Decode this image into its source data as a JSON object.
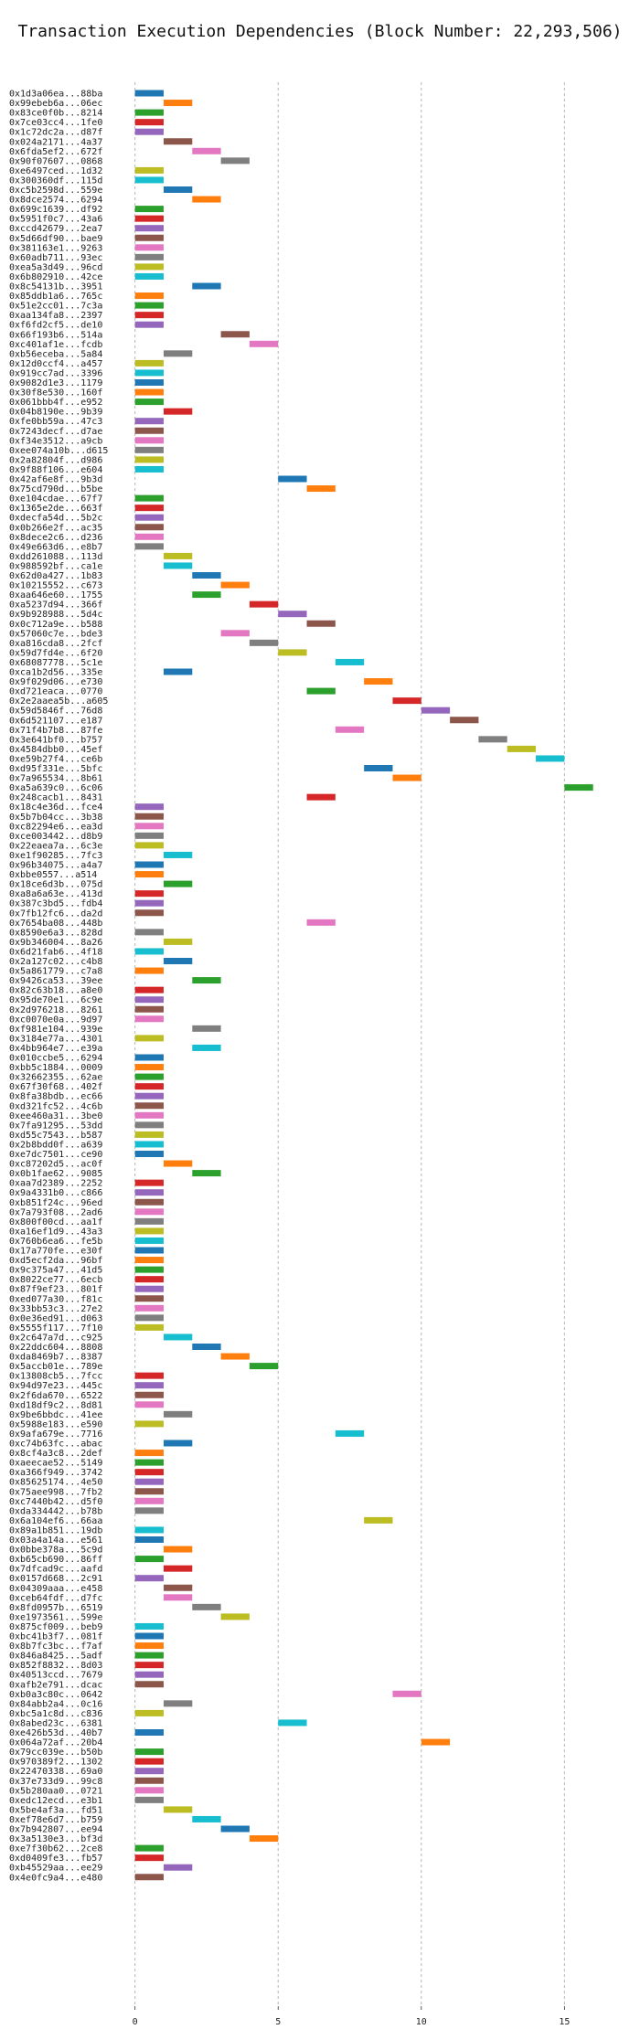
{
  "chart_data": {
    "type": "bar",
    "orientation": "horizontal-gantt",
    "title": "Transaction Execution Dependencies (Block Number: 22,293,506)",
    "xlabel": "",
    "ylabel": "",
    "xlim": [
      -0.5,
      17
    ],
    "xticks": [
      0,
      5,
      10,
      15
    ],
    "grid": true,
    "bar_width": 1,
    "colors": [
      "#1f77b4",
      "#ff7f0e",
      "#2ca02c",
      "#d62728",
      "#9467bd",
      "#8c564b",
      "#e377c2",
      "#7f7f7f",
      "#bcbd22",
      "#17becf"
    ],
    "rows": [
      {
        "tx": "0x1d3a06ea...88ba",
        "start": 0,
        "color": 0
      },
      {
        "tx": "0x99ebeb6a...06ec",
        "start": 1,
        "color": 1
      },
      {
        "tx": "0x83ce0f0b...8214",
        "start": 0,
        "color": 2
      },
      {
        "tx": "0x7ce03cc4...1fe0",
        "start": 0,
        "color": 3
      },
      {
        "tx": "0x1c72dc2a...d87f",
        "start": 0,
        "color": 4
      },
      {
        "tx": "0x024a2171...4a37",
        "start": 1,
        "color": 5
      },
      {
        "tx": "0x6fda5ef2...672f",
        "start": 2,
        "color": 6
      },
      {
        "tx": "0x90f07607...0868",
        "start": 3,
        "color": 7
      },
      {
        "tx": "0xe6497ced...1d32",
        "start": 0,
        "color": 8
      },
      {
        "tx": "0x300360df...115d",
        "start": 0,
        "color": 9
      },
      {
        "tx": "0xc5b2598d...559e",
        "start": 1,
        "color": 0
      },
      {
        "tx": "0x8dce2574...6294",
        "start": 2,
        "color": 1
      },
      {
        "tx": "0x699c1639...df92",
        "start": 0,
        "color": 2
      },
      {
        "tx": "0x5951f0c7...43a6",
        "start": 0,
        "color": 3
      },
      {
        "tx": "0xccd42679...2ea7",
        "start": 0,
        "color": 4
      },
      {
        "tx": "0x5d66df90...bae9",
        "start": 0,
        "color": 5
      },
      {
        "tx": "0x381163e1...9263",
        "start": 0,
        "color": 6
      },
      {
        "tx": "0x60adb711...93ec",
        "start": 0,
        "color": 7
      },
      {
        "tx": "0xea5a3d49...96cd",
        "start": 0,
        "color": 8
      },
      {
        "tx": "0x6b802910...42ce",
        "start": 0,
        "color": 9
      },
      {
        "tx": "0x8c54131b...3951",
        "start": 2,
        "color": 0
      },
      {
        "tx": "0x85ddb1a6...765c",
        "start": 0,
        "color": 1
      },
      {
        "tx": "0x51e2cc01...7c3a",
        "start": 0,
        "color": 2
      },
      {
        "tx": "0xaa134fa8...2397",
        "start": 0,
        "color": 3
      },
      {
        "tx": "0xf6fd2cf5...de10",
        "start": 0,
        "color": 4
      },
      {
        "tx": "0x66f193b6...514a",
        "start": 3,
        "color": 5
      },
      {
        "tx": "0xc401af1e...fcdb",
        "start": 4,
        "color": 6
      },
      {
        "tx": "0xb56eceba...5a84",
        "start": 1,
        "color": 7
      },
      {
        "tx": "0x12d0ccf4...a457",
        "start": 0,
        "color": 8
      },
      {
        "tx": "0x919cc7ad...3396",
        "start": 0,
        "color": 9
      },
      {
        "tx": "0x9082d1e3...1179",
        "start": 0,
        "color": 0
      },
      {
        "tx": "0x30f8e530...160f",
        "start": 0,
        "color": 1
      },
      {
        "tx": "0x061bbb4f...e952",
        "start": 0,
        "color": 2
      },
      {
        "tx": "0x04b8190e...9b39",
        "start": 1,
        "color": 3
      },
      {
        "tx": "0xfe0bb59a...47c3",
        "start": 0,
        "color": 4
      },
      {
        "tx": "0x7243decf...d7ae",
        "start": 0,
        "color": 5
      },
      {
        "tx": "0xf34e3512...a9cb",
        "start": 0,
        "color": 6
      },
      {
        "tx": "0xee074a10b...d615",
        "start": 0,
        "color": 7
      },
      {
        "tx": "0x2a82804f...d986",
        "start": 0,
        "color": 8
      },
      {
        "tx": "0x9f88f106...e604",
        "start": 0,
        "color": 9
      },
      {
        "tx": "0x42af6e8f...9b3d",
        "start": 5,
        "color": 0
      },
      {
        "tx": "0x75cd790d...b5be",
        "start": 6,
        "color": 1
      },
      {
        "tx": "0xe104cdae...67f7",
        "start": 0,
        "color": 2
      },
      {
        "tx": "0x1365e2de...663f",
        "start": 0,
        "color": 3
      },
      {
        "tx": "0xdecfa54d...5b2c",
        "start": 0,
        "color": 4
      },
      {
        "tx": "0x0b266e2f...ac35",
        "start": 0,
        "color": 5
      },
      {
        "tx": "0x8dece2c6...d236",
        "start": 0,
        "color": 6
      },
      {
        "tx": "0x49e663d6...e8b7",
        "start": 0,
        "color": 7
      },
      {
        "tx": "0xdd261088...113d",
        "start": 1,
        "color": 8
      },
      {
        "tx": "0x988592bf...ca1e",
        "start": 1,
        "color": 9
      },
      {
        "tx": "0x62d0a427...1b83",
        "start": 2,
        "color": 0
      },
      {
        "tx": "0x10215552...c673",
        "start": 3,
        "color": 1
      },
      {
        "tx": "0xaa646e60...1755",
        "start": 2,
        "color": 2
      },
      {
        "tx": "0xa5237d94...366f",
        "start": 4,
        "color": 3
      },
      {
        "tx": "0x9b928988...5d4c",
        "start": 5,
        "color": 4
      },
      {
        "tx": "0x0c712a9e...b588",
        "start": 6,
        "color": 5
      },
      {
        "tx": "0x57060c7e...bde3",
        "start": 3,
        "color": 6
      },
      {
        "tx": "0xa816cda8...2fcf",
        "start": 4,
        "color": 7
      },
      {
        "tx": "0x59d7fd4e...6f20",
        "start": 5,
        "color": 8
      },
      {
        "tx": "0x68087778...5c1e",
        "start": 7,
        "color": 9
      },
      {
        "tx": "0xca1b2d56...335e",
        "start": 1,
        "color": 0
      },
      {
        "tx": "0x9f029d06...e730",
        "start": 8,
        "color": 1
      },
      {
        "tx": "0xd721eaca...0770",
        "start": 6,
        "color": 2
      },
      {
        "tx": "0x2e2aaea5b...a605",
        "start": 9,
        "color": 3
      },
      {
        "tx": "0x59d5846f...76d8",
        "start": 10,
        "color": 4
      },
      {
        "tx": "0x6d521107...e187",
        "start": 11,
        "color": 5
      },
      {
        "tx": "0x71f4b7b8...87fe",
        "start": 7,
        "color": 6
      },
      {
        "tx": "0x3e641bf0...b757",
        "start": 12,
        "color": 7
      },
      {
        "tx": "0x4584dbb0...45ef",
        "start": 13,
        "color": 8
      },
      {
        "tx": "0xe59b27f4...ce6b",
        "start": 14,
        "color": 9
      },
      {
        "tx": "0xd95f331e...5bfc",
        "start": 8,
        "color": 0
      },
      {
        "tx": "0x7a965534...8b61",
        "start": 9,
        "color": 1
      },
      {
        "tx": "0xa5a639c0...6c06",
        "start": 15,
        "color": 2
      },
      {
        "tx": "0x248cacb1...8431",
        "start": 6,
        "color": 3
      },
      {
        "tx": "0x18c4e36d...fce4",
        "start": 0,
        "color": 4
      },
      {
        "tx": "0x5b7b04cc...3b38",
        "start": 0,
        "color": 5
      },
      {
        "tx": "0xc82294e6...ea3d",
        "start": 0,
        "color": 6
      },
      {
        "tx": "0xce003442...d8b9",
        "start": 0,
        "color": 7
      },
      {
        "tx": "0x22eaea7a...6c3e",
        "start": 0,
        "color": 8
      },
      {
        "tx": "0xe1f90285...7fc3",
        "start": 1,
        "color": 9
      },
      {
        "tx": "0x96b34075...a4a7",
        "start": 0,
        "color": 0
      },
      {
        "tx": "0xbbe0557...a514",
        "start": 0,
        "color": 1
      },
      {
        "tx": "0x18ce6d3b...075d",
        "start": 1,
        "color": 2
      },
      {
        "tx": "0xa8a6a63e...413d",
        "start": 0,
        "color": 3
      },
      {
        "tx": "0x387c3bd5...fdb4",
        "start": 0,
        "color": 4
      },
      {
        "tx": "0x7fb12fc6...da2d",
        "start": 0,
        "color": 5
      },
      {
        "tx": "0x7654ba08...448b",
        "start": 6,
        "color": 6
      },
      {
        "tx": "0x8590e6a3...828d",
        "start": 0,
        "color": 7
      },
      {
        "tx": "0x9b346004...8a26",
        "start": 1,
        "color": 8
      },
      {
        "tx": "0x6d21fab6...4f18",
        "start": 0,
        "color": 9
      },
      {
        "tx": "0x2a127c02...c4b8",
        "start": 1,
        "color": 0
      },
      {
        "tx": "0x5a861779...c7a8",
        "start": 0,
        "color": 1
      },
      {
        "tx": "0x9426ca53...39ee",
        "start": 2,
        "color": 2
      },
      {
        "tx": "0x82c63b18...a8e0",
        "start": 0,
        "color": 3
      },
      {
        "tx": "0x95de70e1...6c9e",
        "start": 0,
        "color": 4
      },
      {
        "tx": "0x2d976218...8261",
        "start": 0,
        "color": 5
      },
      {
        "tx": "0xc0070e0a...9d97",
        "start": 0,
        "color": 6
      },
      {
        "tx": "0xf981e104...939e",
        "start": 2,
        "color": 7
      },
      {
        "tx": "0x3184e77a...4301",
        "start": 0,
        "color": 8
      },
      {
        "tx": "0x4bb964e7...e39a",
        "start": 2,
        "color": 9
      },
      {
        "tx": "0x010ccbe5...6294",
        "start": 0,
        "color": 0
      },
      {
        "tx": "0xbb5c1884...0009",
        "start": 0,
        "color": 1
      },
      {
        "tx": "0x32662355...62ae",
        "start": 0,
        "color": 2
      },
      {
        "tx": "0x67f30f68...402f",
        "start": 0,
        "color": 3
      },
      {
        "tx": "0x8fa38bdb...ec66",
        "start": 0,
        "color": 4
      },
      {
        "tx": "0xd321fc52...4c6b",
        "start": 0,
        "color": 5
      },
      {
        "tx": "0xee460a31...3be0",
        "start": 0,
        "color": 6
      },
      {
        "tx": "0x7fa91295...53dd",
        "start": 0,
        "color": 7
      },
      {
        "tx": "0xd55c7543...b587",
        "start": 0,
        "color": 8
      },
      {
        "tx": "0x2b8bdd0f...a639",
        "start": 0,
        "color": 9
      },
      {
        "tx": "0xe7dc7501...ce90",
        "start": 0,
        "color": 0
      },
      {
        "tx": "0xc87202d5...ac0f",
        "start": 1,
        "color": 1
      },
      {
        "tx": "0x0b1fae62...9085",
        "start": 2,
        "color": 2
      },
      {
        "tx": "0xaa7d2389...2252",
        "start": 0,
        "color": 3
      },
      {
        "tx": "0x9a4331b0...c866",
        "start": 0,
        "color": 4
      },
      {
        "tx": "0xb851f24c...96ed",
        "start": 0,
        "color": 5
      },
      {
        "tx": "0x7a793f08...2ad6",
        "start": 0,
        "color": 6
      },
      {
        "tx": "0x800f00cd...aa1f",
        "start": 0,
        "color": 7
      },
      {
        "tx": "0xa16ef1d9...43a3",
        "start": 0,
        "color": 8
      },
      {
        "tx": "0x760b6ea6...fe5b",
        "start": 0,
        "color": 9
      },
      {
        "tx": "0x17a770fe...e30f",
        "start": 0,
        "color": 0
      },
      {
        "tx": "0xd5ecf2da...96bf",
        "start": 0,
        "color": 1
      },
      {
        "tx": "0x9c375a47...41d5",
        "start": 0,
        "color": 2
      },
      {
        "tx": "0x8022ce77...6ecb",
        "start": 0,
        "color": 3
      },
      {
        "tx": "0x87f9ef23...801f",
        "start": 0,
        "color": 4
      },
      {
        "tx": "0xed077a30...f81c",
        "start": 0,
        "color": 5
      },
      {
        "tx": "0x33bb53c3...27e2",
        "start": 0,
        "color": 6
      },
      {
        "tx": "0x0e36ed91...d063",
        "start": 0,
        "color": 7
      },
      {
        "tx": "0x5555f117...7f10",
        "start": 0,
        "color": 8
      },
      {
        "tx": "0x2c647a7d...c925",
        "start": 1,
        "color": 9
      },
      {
        "tx": "0x22ddc604...8808",
        "start": 2,
        "color": 0
      },
      {
        "tx": "0xda8469b7...8387",
        "start": 3,
        "color": 1
      },
      {
        "tx": "0x5accb01e...789e",
        "start": 4,
        "color": 2
      },
      {
        "tx": "0x13808cb5...7fcc",
        "start": 0,
        "color": 3
      },
      {
        "tx": "0x94d97e23...445c",
        "start": 0,
        "color": 4
      },
      {
        "tx": "0x2f6da670...6522",
        "start": 0,
        "color": 5
      },
      {
        "tx": "0xd18df9c2...8d81",
        "start": 0,
        "color": 6
      },
      {
        "tx": "0x9be6bbdc...41ee",
        "start": 1,
        "color": 7
      },
      {
        "tx": "0x5988e183...e590",
        "start": 0,
        "color": 8
      },
      {
        "tx": "0x9afa679e...7716",
        "start": 7,
        "color": 9
      },
      {
        "tx": "0xc74b63fc...abac",
        "start": 1,
        "color": 0
      },
      {
        "tx": "0x8cf4a3c8...2def",
        "start": 0,
        "color": 1
      },
      {
        "tx": "0xaeecae52...5149",
        "start": 0,
        "color": 2
      },
      {
        "tx": "0xa366f949...3742",
        "start": 0,
        "color": 3
      },
      {
        "tx": "0x85625174...4e50",
        "start": 0,
        "color": 4
      },
      {
        "tx": "0x75aee998...7fb2",
        "start": 0,
        "color": 5
      },
      {
        "tx": "0xc7440b42...d5f0",
        "start": 0,
        "color": 6
      },
      {
        "tx": "0xda334442...b78b",
        "start": 0,
        "color": 7
      },
      {
        "tx": "0x6a104ef6...66aa",
        "start": 8,
        "color": 8
      },
      {
        "tx": "0x89a1b851...19db",
        "start": 0,
        "color": 9
      },
      {
        "tx": "0x03a4a14a...e561",
        "start": 0,
        "color": 0
      },
      {
        "tx": "0x0bbe378a...5c9d",
        "start": 1,
        "color": 1
      },
      {
        "tx": "0xb65cb690...86ff",
        "start": 0,
        "color": 2
      },
      {
        "tx": "0x7dfcad9c...aafd",
        "start": 1,
        "color": 3
      },
      {
        "tx": "0x0157d668...2c91",
        "start": 0,
        "color": 4
      },
      {
        "tx": "0x04309aaa...e458",
        "start": 1,
        "color": 5
      },
      {
        "tx": "0xceb64fdf...d7fc",
        "start": 1,
        "color": 6
      },
      {
        "tx": "0x8fd0957b...6519",
        "start": 2,
        "color": 7
      },
      {
        "tx": "0xe1973561...599e",
        "start": 3,
        "color": 8
      },
      {
        "tx": "0x875cf009...beb9",
        "start": 0,
        "color": 9
      },
      {
        "tx": "0xbc41b3f7...081f",
        "start": 0,
        "color": 0
      },
      {
        "tx": "0x8b7fc3bc...f7af",
        "start": 0,
        "color": 1
      },
      {
        "tx": "0x846a8425...5adf",
        "start": 0,
        "color": 2
      },
      {
        "tx": "0x852f8832...8d03",
        "start": 0,
        "color": 3
      },
      {
        "tx": "0x40513ccd...7679",
        "start": 0,
        "color": 4
      },
      {
        "tx": "0xafb2e791...dcac",
        "start": 0,
        "color": 5
      },
      {
        "tx": "0xb0a3c80c...0642",
        "start": 9,
        "color": 6
      },
      {
        "tx": "0x84abb2a4...0c16",
        "start": 1,
        "color": 7
      },
      {
        "tx": "0xbc5a1c8d...c836",
        "start": 0,
        "color": 8
      },
      {
        "tx": "0x8abed23c...6381",
        "start": 5,
        "color": 9
      },
      {
        "tx": "0xe426b53d...40b7",
        "start": 0,
        "color": 0
      },
      {
        "tx": "0x064a72af...20b4",
        "start": 10,
        "color": 1
      },
      {
        "tx": "0x79cc039e...b50b",
        "start": 0,
        "color": 2
      },
      {
        "tx": "0x970389f2...1302",
        "start": 0,
        "color": 3
      },
      {
        "tx": "0x22470338...69a0",
        "start": 0,
        "color": 4
      },
      {
        "tx": "0x37e733d9...99c8",
        "start": 0,
        "color": 5
      },
      {
        "tx": "0x5b280aa0...0721",
        "start": 0,
        "color": 6
      },
      {
        "tx": "0xedc12ecd...e3b1",
        "start": 0,
        "color": 7
      },
      {
        "tx": "0x5be4af3a...fd51",
        "start": 1,
        "color": 8
      },
      {
        "tx": "0xef78e6d7...b759",
        "start": 2,
        "color": 9
      },
      {
        "tx": "0x7b942807...ee94",
        "start": 3,
        "color": 0
      },
      {
        "tx": "0x3a5130e3...bf3d",
        "start": 4,
        "color": 1
      },
      {
        "tx": "0xe7f30b62...2ce8",
        "start": 0,
        "color": 2
      },
      {
        "tx": "0xd0409fe3...fb57",
        "start": 0,
        "color": 3
      },
      {
        "tx": "0xb45529aa...ee29",
        "start": 1,
        "color": 4
      },
      {
        "tx": "0x4e0fc9a4...e480",
        "start": 0,
        "color": 5
      }
    ]
  }
}
